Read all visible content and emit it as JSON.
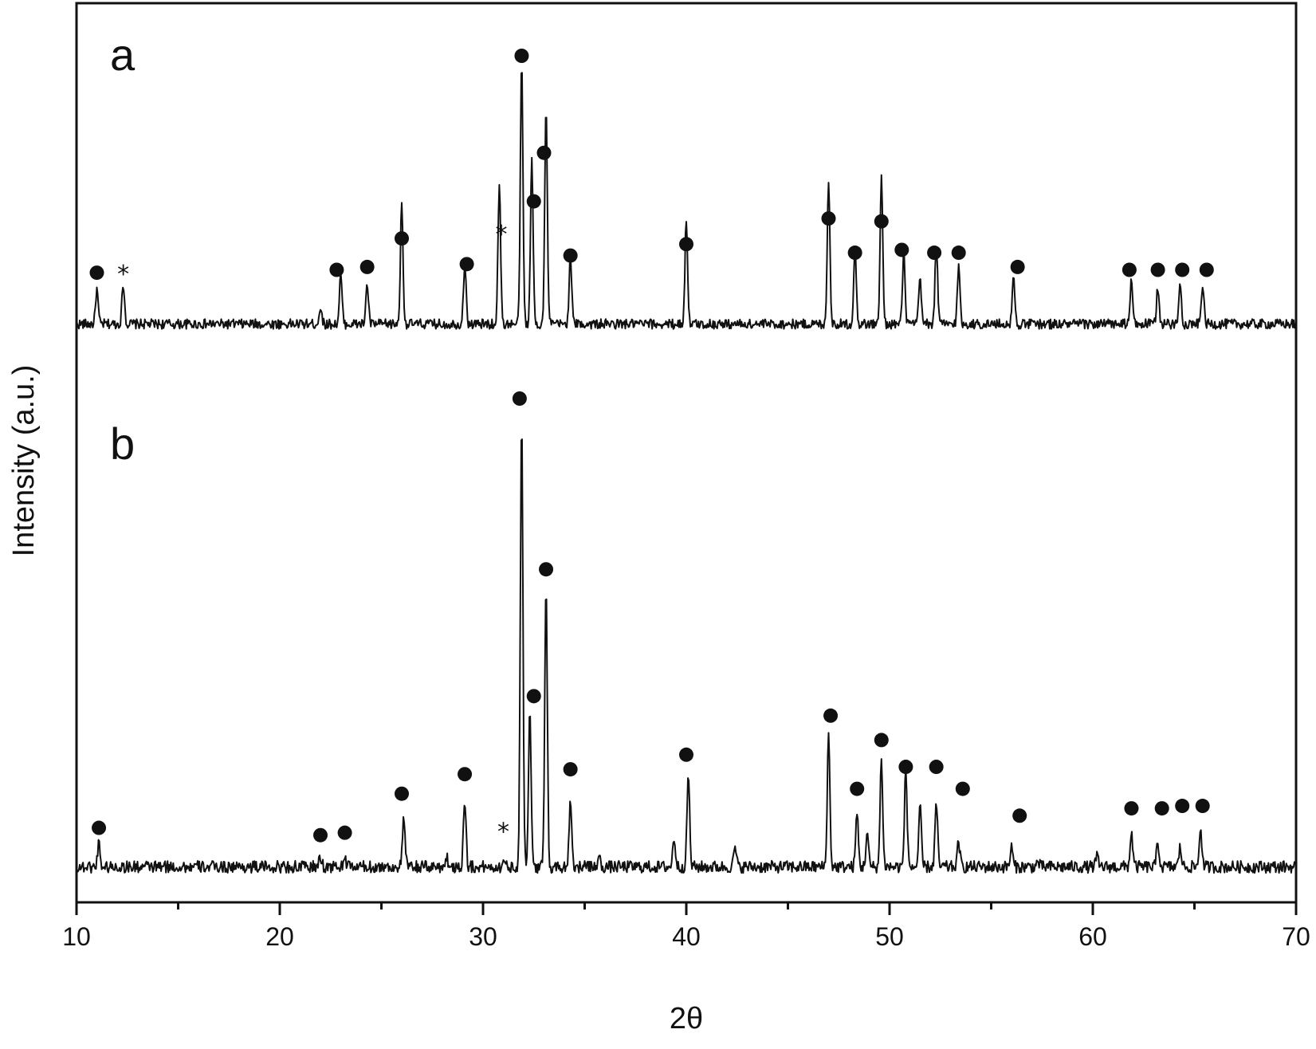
{
  "chart_data": {
    "type": "line",
    "title": "",
    "xlabel": "2θ",
    "ylabel": "Intensity (a.u.)",
    "xlim": [
      10,
      70
    ],
    "x_ticks": [
      "10",
      "20",
      "30",
      "40",
      "50",
      "60",
      "70"
    ],
    "x_minor_ticks": [
      15,
      25,
      35,
      45,
      55,
      65
    ],
    "grid": false,
    "legend": "none",
    "line_color": "#111111",
    "series": [
      {
        "name": "a",
        "baseline": 0.06,
        "noise": 0.035,
        "ylim": [
          0,
          1
        ],
        "peaks": [
          {
            "x": 11.0,
            "y": 0.18
          },
          {
            "x": 12.3,
            "y": 0.2
          },
          {
            "x": 22.0,
            "y": 0.12
          },
          {
            "x": 23.0,
            "y": 0.23
          },
          {
            "x": 24.3,
            "y": 0.2
          },
          {
            "x": 26.0,
            "y": 0.48
          },
          {
            "x": 29.1,
            "y": 0.27
          },
          {
            "x": 30.8,
            "y": 0.55
          },
          {
            "x": 31.9,
            "y": 0.97
          },
          {
            "x": 32.4,
            "y": 0.63
          },
          {
            "x": 33.1,
            "y": 0.81
          },
          {
            "x": 34.3,
            "y": 0.3
          },
          {
            "x": 40.0,
            "y": 0.43
          },
          {
            "x": 47.0,
            "y": 0.57
          },
          {
            "x": 48.3,
            "y": 0.33
          },
          {
            "x": 49.6,
            "y": 0.57
          },
          {
            "x": 50.7,
            "y": 0.3
          },
          {
            "x": 51.5,
            "y": 0.22
          },
          {
            "x": 52.3,
            "y": 0.34
          },
          {
            "x": 53.4,
            "y": 0.26
          },
          {
            "x": 56.1,
            "y": 0.22
          },
          {
            "x": 61.9,
            "y": 0.21
          },
          {
            "x": 63.2,
            "y": 0.19
          },
          {
            "x": 64.3,
            "y": 0.2
          },
          {
            "x": 65.4,
            "y": 0.2
          }
        ],
        "markers": [
          {
            "symbol": "circle",
            "x": 11.0,
            "y": 0.24
          },
          {
            "symbol": "star",
            "x": 12.3,
            "y": 0.24
          },
          {
            "symbol": "circle",
            "x": 22.8,
            "y": 0.25
          },
          {
            "symbol": "circle",
            "x": 24.3,
            "y": 0.26
          },
          {
            "symbol": "circle",
            "x": 26.0,
            "y": 0.36
          },
          {
            "symbol": "circle",
            "x": 29.2,
            "y": 0.27
          },
          {
            "symbol": "star",
            "x": 30.9,
            "y": 0.38
          },
          {
            "symbol": "circle",
            "x": 31.9,
            "y": 1.0
          },
          {
            "symbol": "circle",
            "x": 32.5,
            "y": 0.49
          },
          {
            "symbol": "circle",
            "x": 33.0,
            "y": 0.66
          },
          {
            "symbol": "circle",
            "x": 34.3,
            "y": 0.3
          },
          {
            "symbol": "circle",
            "x": 40.0,
            "y": 0.34
          },
          {
            "symbol": "circle",
            "x": 47.0,
            "y": 0.43
          },
          {
            "symbol": "circle",
            "x": 48.3,
            "y": 0.31
          },
          {
            "symbol": "circle",
            "x": 49.6,
            "y": 0.42
          },
          {
            "symbol": "circle",
            "x": 50.6,
            "y": 0.32
          },
          {
            "symbol": "circle",
            "x": 52.2,
            "y": 0.31
          },
          {
            "symbol": "circle",
            "x": 53.4,
            "y": 0.31
          },
          {
            "symbol": "circle",
            "x": 56.3,
            "y": 0.26
          },
          {
            "symbol": "circle",
            "x": 61.8,
            "y": 0.25
          },
          {
            "symbol": "circle",
            "x": 63.2,
            "y": 0.25
          },
          {
            "symbol": "circle",
            "x": 64.4,
            "y": 0.25
          },
          {
            "symbol": "circle",
            "x": 65.6,
            "y": 0.25
          }
        ]
      },
      {
        "name": "b",
        "baseline": 0.04,
        "noise": 0.025,
        "ylim": [
          0,
          1
        ],
        "peaks": [
          {
            "x": 11.1,
            "y": 0.09
          },
          {
            "x": 22.0,
            "y": 0.06
          },
          {
            "x": 23.2,
            "y": 0.06
          },
          {
            "x": 26.1,
            "y": 0.14
          },
          {
            "x": 28.2,
            "y": 0.06
          },
          {
            "x": 29.1,
            "y": 0.18
          },
          {
            "x": 31.0,
            "y": 0.05
          },
          {
            "x": 31.9,
            "y": 0.96
          },
          {
            "x": 32.3,
            "y": 0.36
          },
          {
            "x": 33.1,
            "y": 0.61
          },
          {
            "x": 34.3,
            "y": 0.18
          },
          {
            "x": 35.7,
            "y": 0.06
          },
          {
            "x": 39.4,
            "y": 0.1
          },
          {
            "x": 40.1,
            "y": 0.23
          },
          {
            "x": 42.4,
            "y": 0.08
          },
          {
            "x": 47.0,
            "y": 0.31
          },
          {
            "x": 48.4,
            "y": 0.15
          },
          {
            "x": 48.9,
            "y": 0.11
          },
          {
            "x": 49.6,
            "y": 0.26
          },
          {
            "x": 50.8,
            "y": 0.24
          },
          {
            "x": 51.5,
            "y": 0.16
          },
          {
            "x": 52.3,
            "y": 0.17
          },
          {
            "x": 53.4,
            "y": 0.09
          },
          {
            "x": 56.0,
            "y": 0.08
          },
          {
            "x": 57.3,
            "y": 0.05
          },
          {
            "x": 60.2,
            "y": 0.06
          },
          {
            "x": 61.9,
            "y": 0.11
          },
          {
            "x": 63.2,
            "y": 0.09
          },
          {
            "x": 64.3,
            "y": 0.08
          },
          {
            "x": 65.3,
            "y": 0.12
          }
        ],
        "markers": [
          {
            "symbol": "circle",
            "x": 11.1,
            "y": 0.12
          },
          {
            "symbol": "circle",
            "x": 22.0,
            "y": 0.105
          },
          {
            "symbol": "circle",
            "x": 23.2,
            "y": 0.11
          },
          {
            "symbol": "circle",
            "x": 26.0,
            "y": 0.19
          },
          {
            "symbol": "circle",
            "x": 29.1,
            "y": 0.23
          },
          {
            "symbol": "star",
            "x": 31.0,
            "y": 0.115
          },
          {
            "symbol": "circle",
            "x": 31.8,
            "y": 1.0
          },
          {
            "symbol": "circle",
            "x": 32.5,
            "y": 0.39
          },
          {
            "symbol": "circle",
            "x": 33.1,
            "y": 0.65
          },
          {
            "symbol": "circle",
            "x": 34.3,
            "y": 0.24
          },
          {
            "symbol": "circle",
            "x": 40.0,
            "y": 0.27
          },
          {
            "symbol": "circle",
            "x": 47.1,
            "y": 0.35
          },
          {
            "symbol": "circle",
            "x": 48.4,
            "y": 0.2
          },
          {
            "symbol": "circle",
            "x": 49.6,
            "y": 0.3
          },
          {
            "symbol": "circle",
            "x": 50.8,
            "y": 0.245
          },
          {
            "symbol": "circle",
            "x": 52.3,
            "y": 0.245
          },
          {
            "symbol": "circle",
            "x": 53.6,
            "y": 0.2
          },
          {
            "symbol": "circle",
            "x": 56.4,
            "y": 0.145
          },
          {
            "symbol": "circle",
            "x": 61.9,
            "y": 0.16
          },
          {
            "symbol": "circle",
            "x": 63.4,
            "y": 0.16
          },
          {
            "symbol": "circle",
            "x": 64.4,
            "y": 0.165
          },
          {
            "symbol": "circle",
            "x": 65.4,
            "y": 0.165
          }
        ]
      }
    ]
  }
}
